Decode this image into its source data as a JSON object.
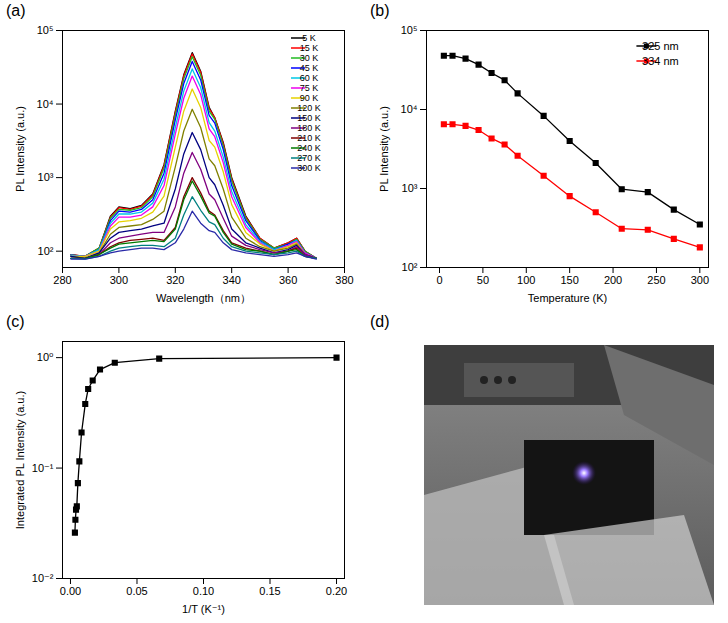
{
  "chart_data": [
    {
      "panel": "(a)",
      "type": "line",
      "x_label": "Wavelength（nm）",
      "y_label": "PL Intensity (a.u.)",
      "x": [
        283,
        288,
        293,
        297,
        300,
        304,
        308,
        312,
        316,
        320,
        323,
        326,
        329,
        332,
        334,
        337,
        340,
        345,
        350,
        355,
        360,
        363,
        366,
        370
      ],
      "series": [
        {
          "name": "5 K",
          "color": "#000000",
          "values": [
            90,
            85,
            110,
            300,
            400,
            380,
            420,
            600,
            1500,
            8000,
            25000,
            50000,
            28000,
            9000,
            6500,
            3000,
            1000,
            300,
            150,
            110,
            130,
            150,
            100,
            80
          ]
        },
        {
          "name": "15 K",
          "color": "#ff0000",
          "values": [
            90,
            85,
            110,
            290,
            390,
            370,
            410,
            580,
            1450,
            7700,
            24000,
            48000,
            27000,
            8700,
            6500,
            2900,
            960,
            290,
            150,
            110,
            130,
            150,
            100,
            80
          ]
        },
        {
          "name": "30 K",
          "color": "#22bb22",
          "values": [
            88,
            85,
            110,
            280,
            370,
            360,
            390,
            550,
            1350,
            7000,
            22000,
            44000,
            24600,
            8000,
            6200,
            2700,
            900,
            280,
            145,
            110,
            125,
            145,
            100,
            80
          ]
        },
        {
          "name": "45 K",
          "color": "#0000ff",
          "values": [
            88,
            85,
            105,
            260,
            350,
            340,
            370,
            500,
            1150,
            6100,
            19000,
            38000,
            21300,
            7000,
            5500,
            2400,
            780,
            260,
            140,
            105,
            125,
            140,
            95,
            80
          ]
        },
        {
          "name": "60 K",
          "color": "#00c8e6",
          "values": [
            88,
            85,
            105,
            240,
            320,
            320,
            340,
            450,
            950,
            4800,
            15000,
            30000,
            16800,
            5600,
            4300,
            1900,
            650,
            230,
            135,
            105,
            120,
            140,
            95,
            80
          ]
        },
        {
          "name": "75 K",
          "color": "#ee00ee",
          "values": [
            85,
            85,
            100,
            220,
            290,
            290,
            310,
            400,
            780,
            3900,
            12000,
            24000,
            13500,
            4600,
            3600,
            1600,
            550,
            210,
            130,
            100,
            120,
            135,
            95,
            80
          ]
        },
        {
          "name": "90 K",
          "color": "#e6d200",
          "values": [
            85,
            85,
            100,
            200,
            250,
            260,
            280,
            340,
            560,
            2600,
            8000,
            16000,
            9000,
            3200,
            2600,
            1200,
            430,
            180,
            125,
            100,
            115,
            130,
            90,
            80
          ]
        },
        {
          "name": "120 K",
          "color": "#808000",
          "values": [
            85,
            80,
            95,
            170,
            210,
            220,
            230,
            270,
            350,
            1400,
            4300,
            8500,
            4800,
            1800,
            1450,
            700,
            290,
            150,
            115,
            100,
            110,
            125,
            90,
            80
          ]
        },
        {
          "name": "150 K",
          "color": "#000080",
          "values": [
            85,
            80,
            95,
            150,
            180,
            190,
            200,
            220,
            240,
            700,
            2100,
            4100,
            2400,
            1000,
            800,
            420,
            200,
            130,
            110,
            95,
            105,
            120,
            90,
            80
          ]
        },
        {
          "name": "180 K",
          "color": "#800080",
          "values": [
            80,
            80,
            90,
            130,
            150,
            160,
            170,
            180,
            180,
            400,
            1150,
            2200,
            1300,
            600,
            500,
            280,
            160,
            120,
            105,
            95,
            100,
            115,
            90,
            80
          ]
        },
        {
          "name": "210 K",
          "color": "#800000",
          "values": [
            80,
            80,
            90,
            115,
            130,
            140,
            145,
            150,
            140,
            210,
            550,
            1000,
            620,
            350,
            310,
            190,
            130,
            110,
            100,
            90,
            100,
            110,
            85,
            80
          ]
        },
        {
          "name": "240 K",
          "color": "#007a00",
          "values": [
            80,
            80,
            90,
            110,
            125,
            130,
            135,
            140,
            135,
            200,
            500,
            900,
            560,
            330,
            300,
            180,
            125,
            105,
            100,
            90,
            100,
            105,
            85,
            80
          ]
        },
        {
          "name": "270 K",
          "color": "#008080",
          "values": [
            80,
            78,
            85,
            100,
            110,
            115,
            120,
            120,
            115,
            150,
            310,
            550,
            360,
            250,
            230,
            150,
            115,
            100,
            95,
            90,
            95,
            100,
            85,
            80
          ]
        },
        {
          "name": "300 K",
          "color": "#2a2aa8",
          "values": [
            78,
            78,
            85,
            95,
            100,
            105,
            110,
            110,
            105,
            130,
            200,
            350,
            240,
            190,
            180,
            130,
            105,
            95,
            90,
            85,
            90,
            95,
            85,
            78
          ]
        }
      ],
      "xlim": [
        280,
        380
      ],
      "xticks": [
        280,
        300,
        320,
        340,
        360,
        380
      ],
      "ylim": [
        60,
        100000
      ],
      "yticks": [
        {
          "value": 100,
          "label": "10²"
        },
        {
          "value": 1000,
          "label": "10³"
        },
        {
          "value": 10000,
          "label": "10⁴"
        },
        {
          "value": 100000,
          "label": "10⁵"
        }
      ],
      "log": "y",
      "legend": "upper right",
      "grid": false
    },
    {
      "panel": "(b)",
      "type": "line",
      "x_label": "Temperature (K)",
      "y_label": "PL Intensity (a.u.)",
      "x": [
        5,
        15,
        30,
        45,
        60,
        75,
        90,
        120,
        150,
        180,
        210,
        240,
        270,
        300
      ],
      "series": [
        {
          "name": "325 nm",
          "color": "#000000",
          "marker": "square",
          "values": [
            48000,
            48000,
            44000,
            37000,
            29000,
            23500,
            16000,
            8300,
            4000,
            2100,
            980,
            900,
            540,
            350
          ]
        },
        {
          "name": "334 nm",
          "color": "#ff0000",
          "marker": "square",
          "values": [
            6500,
            6500,
            6200,
            5500,
            4300,
            3600,
            2600,
            1450,
            800,
            500,
            310,
            300,
            230,
            180
          ]
        }
      ],
      "xlim": [
        -15,
        310
      ],
      "xticks": [
        0,
        50,
        100,
        150,
        200,
        250,
        300
      ],
      "ylim": [
        100,
        100000
      ],
      "yticks": [
        {
          "value": 100,
          "label": "10²"
        },
        {
          "value": 1000,
          "label": "10³"
        },
        {
          "value": 10000,
          "label": "10⁴"
        },
        {
          "value": 100000,
          "label": "10⁵"
        }
      ],
      "log": "y",
      "legend": "upper right",
      "grid": false
    },
    {
      "panel": "(c)",
      "type": "line",
      "x_label": "1/T (K⁻¹)",
      "y_label": "Integrated PL Intensity (a.u.)",
      "x": [
        0.2,
        0.0667,
        0.0333,
        0.0222,
        0.0167,
        0.0133,
        0.0111,
        0.00833,
        0.00667,
        0.00556,
        0.00476,
        0.00417,
        0.0037,
        0.00333
      ],
      "series": [
        {
          "name": "Integrated PL Intensity",
          "color": "#000000",
          "marker": "square",
          "values": [
            1.0,
            0.98,
            0.9,
            0.78,
            0.62,
            0.52,
            0.38,
            0.21,
            0.115,
            0.073,
            0.045,
            0.042,
            0.034,
            0.026
          ]
        }
      ],
      "xlim": [
        -0.006,
        0.206
      ],
      "xticks": [
        {
          "value": 0,
          "label": "0.00"
        },
        {
          "value": 0.05,
          "label": "0.05"
        },
        {
          "value": 0.1,
          "label": "0.10"
        },
        {
          "value": 0.15,
          "label": "0.15"
        },
        {
          "value": 0.2,
          "label": "0.20"
        }
      ],
      "ylim": [
        0.01,
        1.4
      ],
      "yticks": [
        {
          "value": 0.01,
          "label": "10⁻²"
        },
        {
          "value": 0.1,
          "label": "10⁻¹"
        },
        {
          "value": 1,
          "label": "10⁰"
        }
      ],
      "log": "y",
      "grid": false
    },
    {
      "panel": "(d)",
      "type": "image"
    }
  ]
}
